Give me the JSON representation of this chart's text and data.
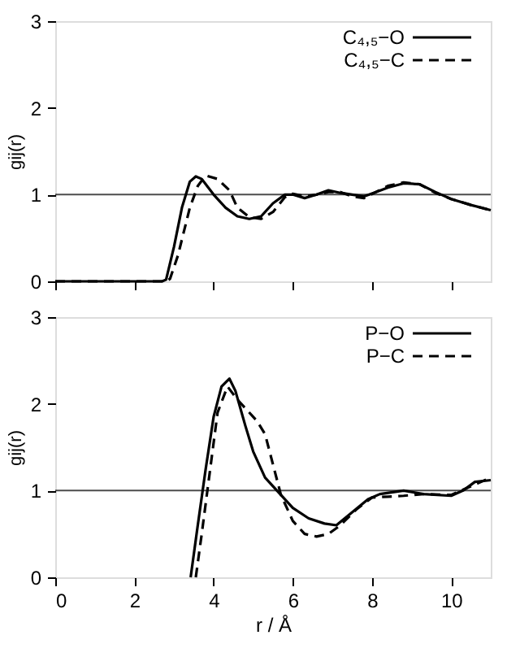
{
  "chart_data": [
    {
      "type": "line",
      "ylabel": "gij(r)",
      "xlim": [
        0,
        11
      ],
      "xticks": [
        0,
        2,
        4,
        6,
        8,
        10
      ],
      "ylim": [
        0,
        3
      ],
      "yticks": [
        0,
        1,
        2,
        3
      ],
      "tick_labels": "y",
      "legend": "top right",
      "grid": false,
      "ref_lines": [
        {
          "axis": "y",
          "value": 1,
          "color": "#000000"
        }
      ],
      "series": [
        {
          "name": "C₄,₅−O",
          "color": "#000000",
          "line_style": "solid",
          "x": [
            0,
            2.7,
            2.8,
            3.0,
            3.2,
            3.4,
            3.55,
            3.7,
            4.0,
            4.3,
            4.6,
            4.9,
            5.2,
            5.5,
            5.8,
            6.0,
            6.3,
            6.6,
            6.9,
            7.2,
            7.5,
            7.8,
            8.1,
            8.4,
            8.8,
            9.2,
            9.6,
            10.0,
            10.5,
            11
          ],
          "values": [
            0,
            0,
            0.02,
            0.4,
            0.85,
            1.15,
            1.21,
            1.18,
            1.0,
            0.85,
            0.75,
            0.72,
            0.75,
            0.9,
            1.0,
            1.0,
            0.96,
            1.0,
            1.05,
            1.02,
            1.0,
            0.98,
            1.03,
            1.08,
            1.13,
            1.12,
            1.03,
            0.95,
            0.88,
            0.82
          ]
        },
        {
          "name": "C₄,₅−C",
          "color": "#000000",
          "line_style": "dashed",
          "x": [
            0,
            2.8,
            2.9,
            3.1,
            3.4,
            3.6,
            3.8,
            4.1,
            4.4,
            4.6,
            4.9,
            5.2,
            5.5,
            5.8,
            6.0,
            6.3,
            6.6,
            6.9,
            7.2,
            7.5,
            7.8,
            8.1,
            8.4,
            8.8,
            9.2,
            9.6,
            10.0,
            10.5,
            11
          ],
          "values": [
            0,
            0,
            0.03,
            0.3,
            0.85,
            1.1,
            1.22,
            1.18,
            1.05,
            0.85,
            0.74,
            0.72,
            0.8,
            0.97,
            1.01,
            0.98,
            1.0,
            1.03,
            1.03,
            0.98,
            0.96,
            1.03,
            1.1,
            1.14,
            1.12,
            1.02,
            0.95,
            0.88,
            0.82
          ]
        }
      ]
    },
    {
      "type": "line",
      "ylabel": "gij(r)",
      "xlabel": "r / Å",
      "xlim": [
        0,
        11
      ],
      "xticks": [
        0,
        2,
        4,
        6,
        8,
        10
      ],
      "ylim": [
        0,
        3
      ],
      "yticks": [
        0,
        1,
        2,
        3
      ],
      "legend": "top right",
      "grid": false,
      "ref_lines": [
        {
          "axis": "y",
          "value": 1,
          "color": "#000000"
        }
      ],
      "series": [
        {
          "name": "P−O",
          "color": "#000000",
          "line_style": "solid",
          "x": [
            3.42,
            3.6,
            3.8,
            4.0,
            4.2,
            4.4,
            4.55,
            4.8,
            5.0,
            5.3,
            5.6,
            6.0,
            6.4,
            6.8,
            7.1,
            7.5,
            7.9,
            8.2,
            8.8,
            9.3,
            10.0,
            10.3,
            10.6,
            11
          ],
          "values": [
            0,
            0.6,
            1.25,
            1.85,
            2.2,
            2.29,
            2.15,
            1.75,
            1.45,
            1.15,
            1.0,
            0.8,
            0.68,
            0.62,
            0.6,
            0.75,
            0.9,
            0.96,
            1.0,
            0.96,
            0.94,
            1.0,
            1.1,
            1.12
          ]
        },
        {
          "name": "P−C",
          "color": "#000000",
          "line_style": "dashed",
          "x": [
            3.55,
            3.7,
            3.9,
            4.1,
            4.35,
            4.6,
            4.8,
            5.1,
            5.3,
            5.5,
            5.7,
            6.0,
            6.3,
            6.6,
            6.9,
            7.2,
            7.6,
            8.0,
            8.4,
            8.8,
            9.3,
            10.0,
            10.5,
            11
          ],
          "values": [
            0,
            0.5,
            1.2,
            1.9,
            2.2,
            2.05,
            1.95,
            1.8,
            1.65,
            1.3,
            0.95,
            0.65,
            0.5,
            0.47,
            0.5,
            0.6,
            0.78,
            0.92,
            0.93,
            0.94,
            0.96,
            0.95,
            1.05,
            1.15
          ]
        }
      ]
    }
  ]
}
